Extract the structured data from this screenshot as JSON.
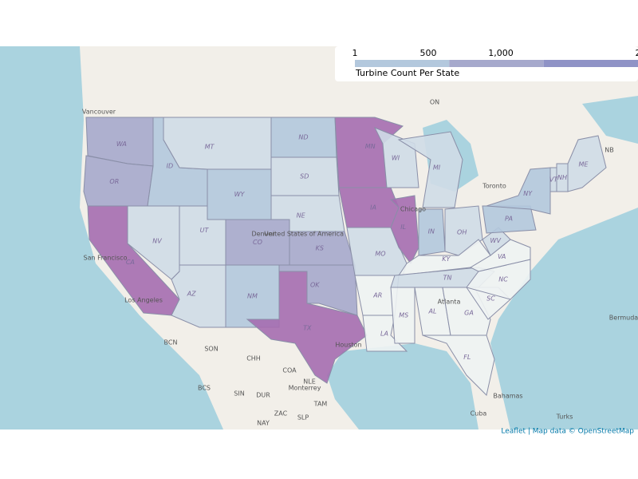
{
  "legend": {
    "tick_labels": [
      "1",
      "500",
      "1,000",
      "2"
    ],
    "title": "Turbine Count Per State",
    "colors": [
      "#b3c8dd",
      "#a6a9cc",
      "#8f93c6"
    ]
  },
  "states": [
    {
      "label": "WA",
      "color": "#a6a9cc"
    },
    {
      "label": "OR",
      "color": "#a6a9cc"
    },
    {
      "label": "CA",
      "color": "#a56db0"
    },
    {
      "label": "ID",
      "color": "#b3c8dd"
    },
    {
      "label": "NV",
      "color": "#cfdbe7"
    },
    {
      "label": "MT",
      "color": "#cfdbe7"
    },
    {
      "label": "WY",
      "color": "#b3c8dd"
    },
    {
      "label": "UT",
      "color": "#cfdbe7"
    },
    {
      "label": "AZ",
      "color": "#cfdbe7"
    },
    {
      "label": "CO",
      "color": "#a6a9cc"
    },
    {
      "label": "NM",
      "color": "#b3c8dd"
    },
    {
      "label": "ND",
      "color": "#b3c8dd"
    },
    {
      "label": "SD",
      "color": "#cfdbe7"
    },
    {
      "label": "NE",
      "color": "#cfdbe7"
    },
    {
      "label": "KS",
      "color": "#a6a9cc"
    },
    {
      "label": "OK",
      "color": "#a6a9cc"
    },
    {
      "label": "TX",
      "color": "#a56db0"
    },
    {
      "label": "MN",
      "color": "#a56db0"
    },
    {
      "label": "IA",
      "color": "#a56db0"
    },
    {
      "label": "MO",
      "color": "#cfdbe7"
    },
    {
      "label": "AR",
      "color": "#eef3f3"
    },
    {
      "label": "LA",
      "color": "#eef3f3"
    },
    {
      "label": "WI",
      "color": "#cfdbe7"
    },
    {
      "label": "IL",
      "color": "#a56db0"
    },
    {
      "label": "MI",
      "color": "#cfdbe7"
    },
    {
      "label": "IN",
      "color": "#b3c8dd"
    },
    {
      "label": "OH",
      "color": "#cfdbe7"
    },
    {
      "label": "KY",
      "color": "#eef3f3"
    },
    {
      "label": "TN",
      "color": "#cfdbe7"
    },
    {
      "label": "MS",
      "color": "#eef3f3"
    },
    {
      "label": "AL",
      "color": "#eef3f3"
    },
    {
      "label": "GA",
      "color": "#eef3f3"
    },
    {
      "label": "FL",
      "color": "#eef3f3"
    },
    {
      "label": "SC",
      "color": "#eef3f3"
    },
    {
      "label": "NC",
      "color": "#eef3f3"
    },
    {
      "label": "VA",
      "color": "#eef3f3"
    },
    {
      "label": "WV",
      "color": "#cfdbe7"
    },
    {
      "label": "PA",
      "color": "#b3c8dd"
    },
    {
      "label": "NY",
      "color": "#b3c8dd"
    },
    {
      "label": "VT",
      "color": "#cfdbe7"
    },
    {
      "label": "NH",
      "color": "#cfdbe7"
    },
    {
      "label": "ME",
      "color": "#cfdbe7"
    }
  ],
  "places": [
    "Vancouver",
    "ON",
    "Toronto",
    "Chicago",
    "Denver",
    "San Francisco",
    "Los Angeles",
    "Houston",
    "Atlanta",
    "United States of America",
    "NB",
    "Bermuda",
    "BCN",
    "SON",
    "CHH",
    "COA",
    "NLE",
    "Monterrey",
    "BCS",
    "SIN",
    "DUR",
    "TAM",
    "ZAC",
    "SLP",
    "NAY",
    "Bahamas",
    "Cuba",
    "Turks"
  ],
  "attribution": "Leaflet | Map data © OpenStreetMap"
}
